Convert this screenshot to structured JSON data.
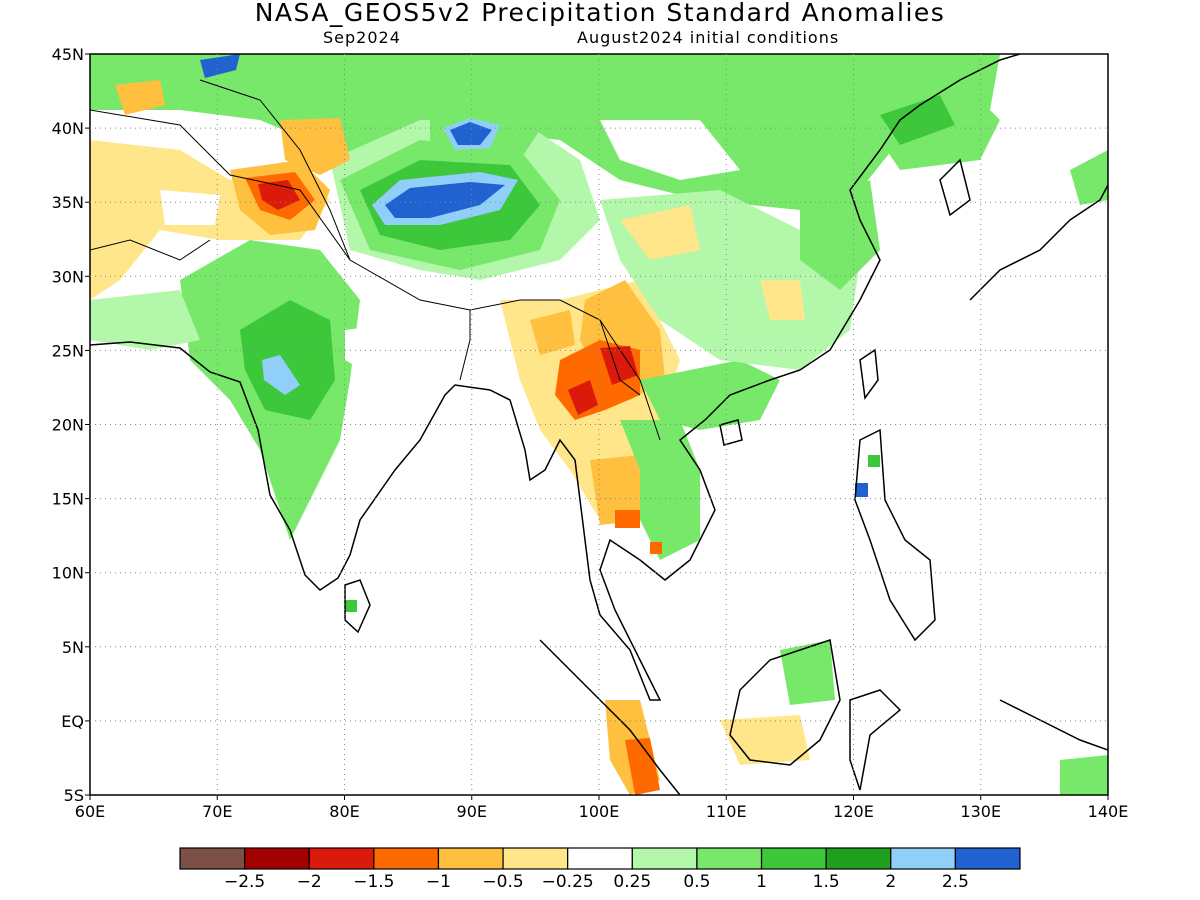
{
  "header": {
    "title": "NASA_GEOS5v2 Precipitation Standard Anomalies",
    "valid_month": "Sep2024",
    "init_conditions": "August2024 initial conditions"
  },
  "map": {
    "lon_range": [
      60,
      140
    ],
    "lat_range": [
      -5,
      45
    ],
    "lon_ticks": [
      "60E",
      "70E",
      "80E",
      "90E",
      "100E",
      "110E",
      "120E",
      "130E",
      "140E"
    ],
    "lat_ticks": [
      "45N",
      "40N",
      "35N",
      "30N",
      "25N",
      "20N",
      "15N",
      "10N",
      "5N",
      "EQ",
      "5S"
    ],
    "grid": "dotted"
  },
  "legend": {
    "colors": [
      "#7a5047",
      "#a50000",
      "#dc1a0b",
      "#ff6a00",
      "#ffbf3f",
      "#ffe68a",
      "#ffffff",
      "#b3f7ab",
      "#78e86b",
      "#3cc83a",
      "#1ea01e",
      "#90d0f8",
      "#1f62d0"
    ],
    "labels": [
      "−2.5",
      "−2",
      "−1.5",
      "−1",
      "−0.5",
      "−0.25",
      "0.25",
      "0.5",
      "1",
      "1.5",
      "2",
      "2.5"
    ]
  }
}
